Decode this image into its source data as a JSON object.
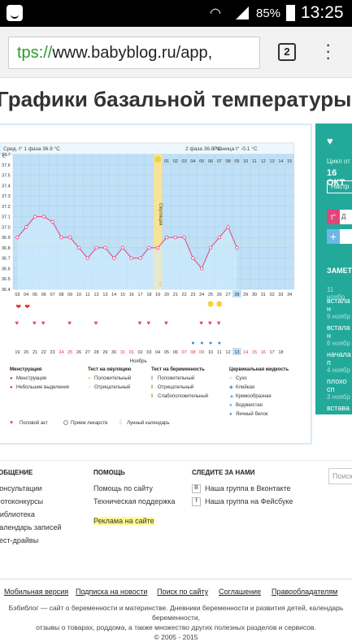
{
  "status": {
    "battery": "85%",
    "time": "13:25"
  },
  "browser": {
    "url_prefix": "tps://",
    "url_rest": "www.babyblog.ru/app,",
    "tabs_count": "2"
  },
  "page": {
    "title": "Графики базальной температуры"
  },
  "chart": {
    "c_label": "C°",
    "phase1": "Сред. t° 1 фаза 36.9 °C",
    "phase2": "2 фаза 36.8 °C",
    "diff": "Разница t° -0.1 °C",
    "ovulation": "Овуляция",
    "month": "Ноябрь",
    "day_cols": [
      "03",
      "04",
      "05",
      "06",
      "07",
      "08",
      "09",
      "10",
      "11",
      "12",
      "13",
      "14",
      "15",
      "16",
      "17",
      "18",
      "19",
      "20",
      "21",
      "22",
      "23",
      "24",
      "25",
      "26",
      "27",
      "28",
      "29",
      "30",
      "31",
      "32",
      "33",
      "34"
    ],
    "top_days": [
      "01",
      "02",
      "03",
      "04",
      "05",
      "06",
      "07",
      "08",
      "09",
      "10",
      "11",
      "12",
      "13",
      "14",
      "15"
    ],
    "dates": [
      "19",
      "20",
      "21",
      "22",
      "23",
      "24",
      "25",
      "26",
      "27",
      "28",
      "29",
      "30",
      "31",
      "01",
      "02",
      "03",
      "04",
      "05",
      "06",
      "07",
      "08",
      "09",
      "10",
      "11",
      "12",
      "13",
      "14",
      "15",
      "16",
      "17",
      "18"
    ],
    "red_dates": [
      "24",
      "25",
      "31",
      "01",
      "07",
      "08",
      "09",
      "14",
      "15",
      "16"
    ],
    "yaxis": [
      "37.7",
      "37.6",
      "37.5",
      "37.4",
      "37.3",
      "37.2",
      "37.1",
      "37.0",
      "36.9",
      "36.8",
      "36.7",
      "36.6",
      "36.5",
      "36.4"
    ]
  },
  "chart_data": {
    "type": "line",
    "x": [
      "03",
      "04",
      "05",
      "06",
      "07",
      "08",
      "09",
      "10",
      "11",
      "12",
      "13",
      "14",
      "15",
      "16",
      "17",
      "18",
      "19",
      "20",
      "21",
      "22",
      "23",
      "24",
      "25",
      "26",
      "27",
      "28"
    ],
    "series": [
      {
        "values": [
          36.9,
          37.0,
          37.1,
          37.1,
          37.05,
          36.9,
          36.9,
          36.8,
          36.7,
          36.8,
          36.8,
          36.7,
          36.8,
          36.7,
          36.7,
          36.8,
          36.8,
          36.9,
          36.9,
          36.9,
          36.7,
          36.6,
          36.8,
          36.9,
          37.0,
          36.8
        ]
      }
    ],
    "ylim": [
      36.4,
      37.7
    ],
    "xlabel": "",
    "ylabel": "C°",
    "title": ""
  },
  "legend": {
    "col1_title": "Менструация",
    "col1": [
      "Менструация",
      "Небольшие выделения"
    ],
    "col2_title": "Тест на овуляцию",
    "col2": [
      "Положительный",
      "Отрицательный"
    ],
    "col3_title": "Тест на беременность",
    "col3": [
      "Положительный",
      "Отрицательный",
      "Слабоположительный"
    ],
    "col4_title": "Цервикальная жидкость",
    "col4": [
      "Сухо",
      "Клейкая",
      "Кремообразная",
      "Водянистая",
      "Яичный белок"
    ],
    "extra": [
      "Половой акт",
      "Прием лекарств",
      "Лунный календарь"
    ]
  },
  "sidebar": {
    "t1": "Цикл от",
    "t2": "16 ОКТ",
    "btn": "Настр",
    "t_label": "t°",
    "t_label_right": "Д",
    "plus": "+",
    "heading": "ЗАМЕТ",
    "notes": [
      {
        "date": "11 ноябр",
        "text": "встала н"
      },
      {
        "date": "9 ноябр",
        "text": "встала н"
      },
      {
        "date": "6 ноябр",
        "text": "начала п"
      },
      {
        "date": "4 ноябр",
        "text": "плохо сп"
      },
      {
        "date": "3 ноябр",
        "text": "встава"
      }
    ]
  },
  "footer": {
    "col1_title": "ОБЩЕНИЕ",
    "col1": [
      "Консультации",
      "Фотоконкурсы",
      "Библиотека",
      "Календарь записей",
      "Тест-драйвы"
    ],
    "col2_title": "ПОМОЩЬ",
    "col2": [
      "Помощь по сайту",
      "Техническая поддержка",
      "Реклама на сайте"
    ],
    "col3_title": "СЛЕДИТЕ ЗА НАМИ",
    "col3": [
      "Наша группа в Вконтакте",
      "Наша группа на Фейсбуке"
    ],
    "search_placeholder": "Поиск",
    "bottom_links": [
      "Мобильная версия",
      "Подписка на новости",
      "Поиск по сайту",
      "Соглашение",
      "Правообладателям"
    ],
    "copyright1": "Бэбиблог — сайт о беременности и материнстве. Дневники беременности и развития детей, календарь беременности,",
    "copyright2": "отзывы о товарах, роддома, а также множество других полезных разделов и сервисов.",
    "copyright3": "© 2005 - 2015"
  }
}
